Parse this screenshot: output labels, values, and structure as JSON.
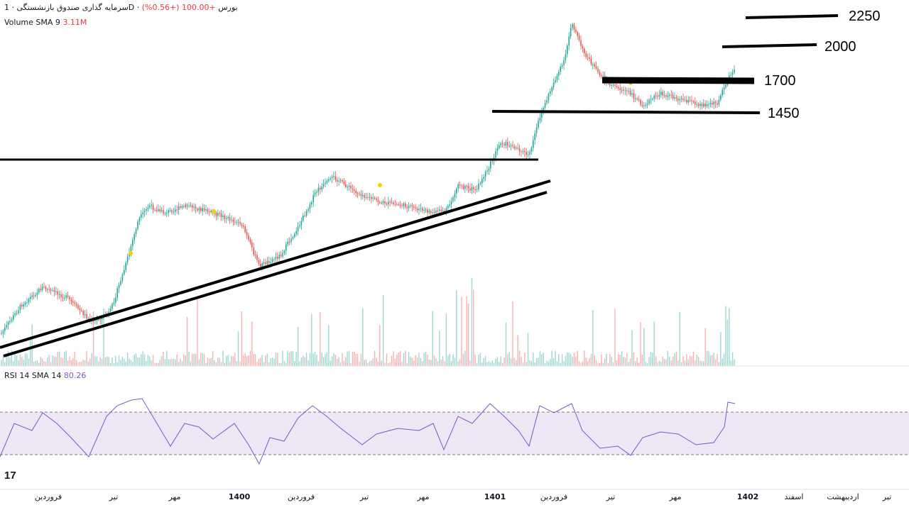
{
  "header": {
    "title": "سرمایه گذاری صندوق بازنشستگی",
    "exchange": "بورس",
    "interval": "1D",
    "change": "+100.00 (+0.56%)",
    "volume_label": "Volume SMA 9",
    "volume_value": "3.11M",
    "rsi_label": "RSI 14 SMA 14",
    "rsi_value": "80.26"
  },
  "logo_text": "17",
  "colors": {
    "up": "#26a69a",
    "down": "#ef5350",
    "rsi": "#7e57c2",
    "band": "#ede7f6",
    "marker": "#f5d000"
  },
  "chart_data": [
    {
      "type": "candlestick",
      "title": "سرمایه گذاری صندوق بازنشستگی",
      "x_axis_labels": [
        "فروردین",
        "تیر",
        "مهر",
        "1400",
        "فروردین",
        "تیر",
        "مهر",
        "1401",
        "فروردین",
        "تیر",
        "مهر",
        "1402",
        "اسفند",
        "اردیبهشت",
        "تیر"
      ],
      "grid": false,
      "horizontal_levels": [
        {
          "label": "2250"
        },
        {
          "label": "2000"
        },
        {
          "label": "1700"
        },
        {
          "label": "1450"
        }
      ],
      "drawn_lines": [
        "horizontal line at previous resistance",
        "two ascending trend lines"
      ],
      "close_path": [
        {
          "x": "start",
          "y": 0.08
        },
        {
          "x": "peak",
          "y": 0.97
        },
        {
          "x": "end",
          "y": 0.79
        }
      ]
    },
    {
      "type": "line",
      "title": "RSI 14 SMA 14",
      "last_value": 80.26,
      "band": [
        30,
        70
      ]
    }
  ]
}
